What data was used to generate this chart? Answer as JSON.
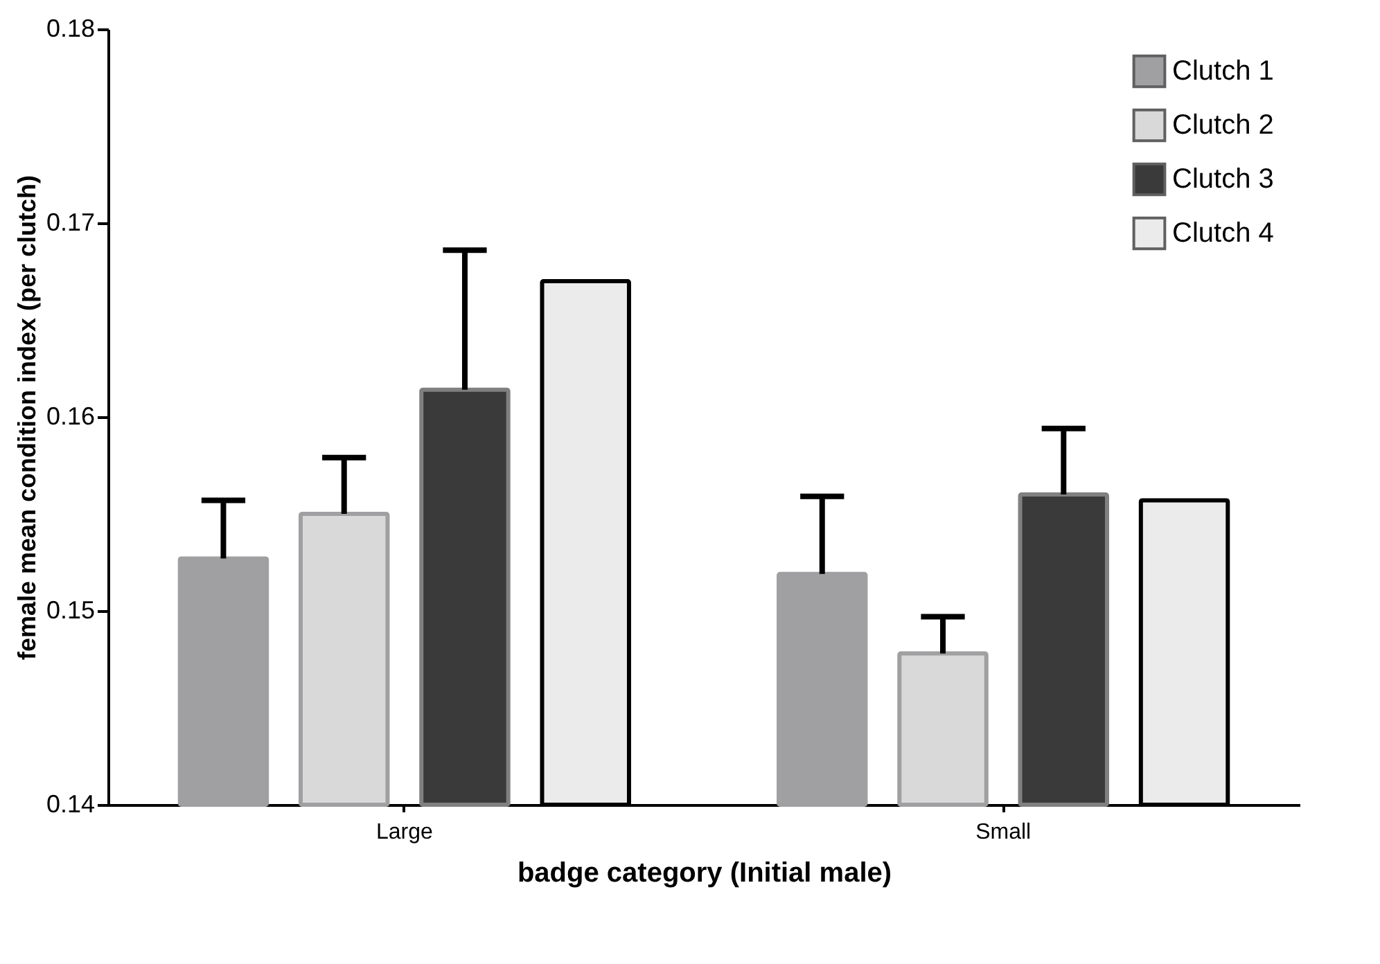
{
  "chart_data": {
    "type": "bar",
    "xlabel": "badge category (Initial male)",
    "ylabel": "female mean condition index (per clutch)",
    "categories": [
      "Large",
      "Small"
    ],
    "series": [
      {
        "name": "Clutch 1",
        "color": "#a0a0a2",
        "values": [
          0.1527,
          0.1519
        ],
        "errors": [
          [
            0.1527,
            0.1557
          ],
          [
            0.1519,
            0.1559
          ]
        ]
      },
      {
        "name": "Clutch 2",
        "color": "#d9d9d9",
        "values": [
          0.155,
          0.1478
        ],
        "errors": [
          [
            0.155,
            0.1579
          ],
          [
            0.1478,
            0.1497
          ]
        ]
      },
      {
        "name": "Clutch 3",
        "color": "#3a3a3a",
        "values": [
          0.1614,
          0.156
        ],
        "errors": [
          [
            0.1614,
            0.1686
          ],
          [
            0.156,
            0.1594
          ]
        ]
      },
      {
        "name": "Clutch 4",
        "color": "#ebebeb",
        "values": [
          0.167,
          0.1557
        ]
      }
    ],
    "ylim": [
      0.14,
      0.18
    ],
    "yticks": [
      0.14,
      0.15,
      0.16,
      0.17,
      0.18
    ],
    "grid": false,
    "legend": "top right"
  }
}
